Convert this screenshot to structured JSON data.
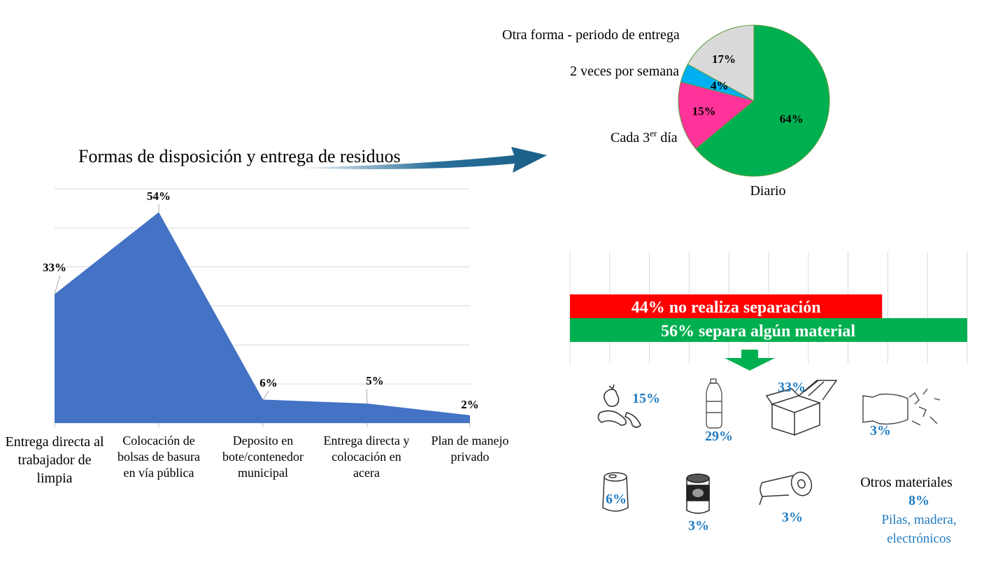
{
  "title": "Formas de disposición y entrega de residuos",
  "chart_data": [
    {
      "type": "area",
      "categories": [
        "Entrega directa al trabajador de limpia",
        "Colocación de bolsas de basura en vía pública",
        "Deposito en bote/contenedor municipal",
        "Entrega directa y colocación en acera",
        "Plan de manejo privado"
      ],
      "category_lines": [
        [
          "Entrega directa al",
          "trabajador de",
          "limpia"
        ],
        [
          "Colocación de",
          "bolsas de basura",
          "en vía pública"
        ],
        [
          "Deposito en",
          "bote/contenedor",
          "municipal"
        ],
        [
          "Entrega directa y",
          "colocación en",
          "acera"
        ],
        [
          "Plan de manejo",
          "privado"
        ]
      ],
      "values": [
        33,
        54,
        6,
        5,
        2
      ],
      "data_labels": [
        "33%",
        "54%",
        "6%",
        "5%",
        "2%"
      ],
      "ylim": [
        0,
        60
      ],
      "grid": true,
      "color": "#4472c4"
    },
    {
      "type": "pie",
      "labels": [
        "Diario",
        "Cada 3er día",
        "2 veces por semana",
        "Otra forma - periodo de entrega"
      ],
      "values": [
        64,
        15,
        4,
        17
      ],
      "data_labels": [
        "64%",
        "15%",
        "4%",
        "17%"
      ],
      "colors": [
        "#00b050",
        "#ff3399",
        "#00b0f0",
        "#d9d9d9"
      ]
    },
    {
      "type": "bar",
      "orientation": "horizontal",
      "categories": [
        "no realiza separación",
        "separa algún material"
      ],
      "values": [
        44,
        56
      ],
      "bar_labels": [
        "44% no realiza separación",
        "56% separa algún material"
      ],
      "colors": [
        "#ff0000",
        "#00b050"
      ],
      "xlim": [
        0,
        56
      ],
      "grid": true
    }
  ],
  "pie_labels": {
    "diario": "Diario",
    "cada_main": "Cada 3",
    "cada_sup": "er",
    "cada_tail": " día",
    "dos_veces": "2 veces por semana",
    "otra": "Otra forma - periodo de entrega"
  },
  "materials": [
    {
      "icon": "food-waste-icon",
      "value": "15%"
    },
    {
      "icon": "plastic-bottle-icon",
      "value": "29%"
    },
    {
      "icon": "cardboard-box-icon",
      "value": "33%"
    },
    {
      "icon": "glass-bottle-icon",
      "value": "3%"
    },
    {
      "icon": "aluminum-can-icon",
      "value": "6%"
    },
    {
      "icon": "tin-can-icon",
      "value": "3%"
    },
    {
      "icon": "paper-roll-icon",
      "value": "3%"
    }
  ],
  "otros": {
    "title": "Otros materiales",
    "value": "8%",
    "line1": "Pilas, madera,",
    "line2": "electrónicos"
  },
  "colors": {
    "arrow": "#1f5f8b",
    "material_text": "#1f7cc4"
  }
}
